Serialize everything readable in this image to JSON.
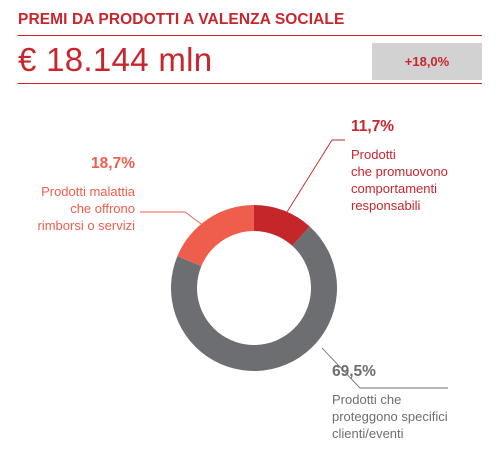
{
  "header": {
    "title": "PREMI DA PRODOTTI A VALENZA SOCIALE",
    "value": "€ 18.144 mln",
    "change": "+18,0%"
  },
  "colors": {
    "brand_red": "#c9252c",
    "dark_red": "#c4262a",
    "coral": "#ef5e4d",
    "gray": "#6d6e71",
    "light_gray_box": "#d2d2d3"
  },
  "chart_data": {
    "type": "pie",
    "variant": "donut",
    "slices": [
      {
        "label": "Prodotti che promuovono comportamenti responsabili",
        "value": 11.7,
        "value_label": "11,7%",
        "color": "#c4262a"
      },
      {
        "label": "Prodotti che proteggono specifici clienti/eventi",
        "value": 69.5,
        "value_label": "69,5%",
        "color": "#6d6e71"
      },
      {
        "label": "Prodotti malattia che offrono rimborsi o servizi",
        "value": 18.7,
        "value_label": "18,7%",
        "color": "#ef5e4d"
      }
    ],
    "annotations": [
      {
        "value_label": "11,7%",
        "lines": [
          "Prodotti",
          "che promuovono",
          "comportamenti",
          "responsabili"
        ]
      },
      {
        "value_label": "18,7%",
        "lines": [
          "Prodotti malattia",
          "che offrono",
          "rimborsi o servizi"
        ]
      },
      {
        "value_label": "69,5%",
        "lines": [
          "Prodotti che",
          "proteggono specifici",
          "clienti/eventi"
        ]
      }
    ]
  }
}
